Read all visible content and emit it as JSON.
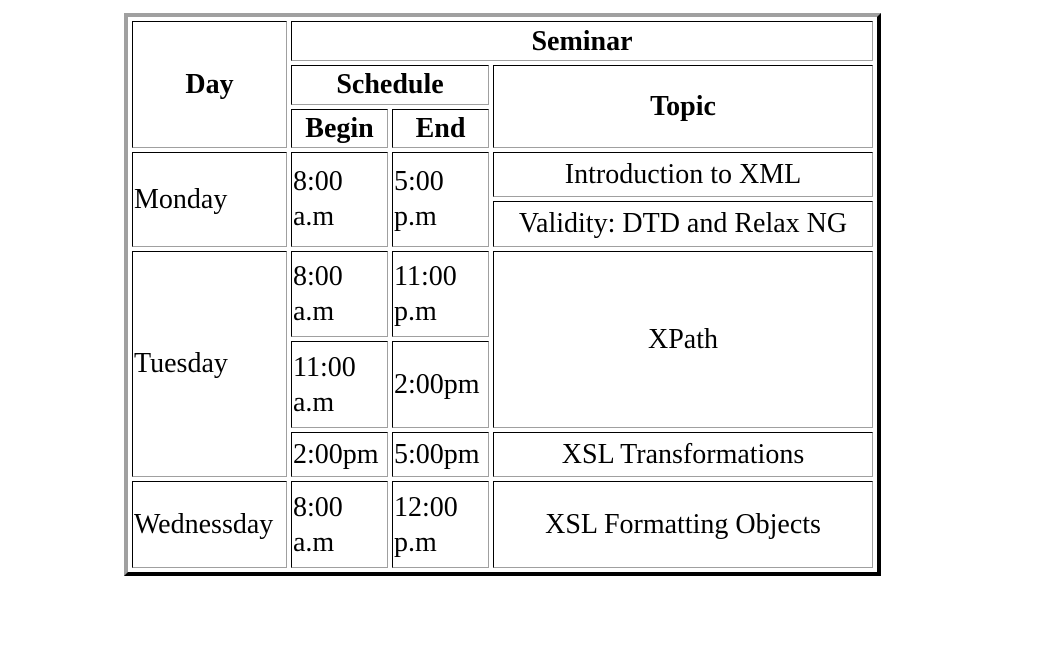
{
  "table": {
    "headers": {
      "day": "Day",
      "seminar": "Seminar",
      "schedule": "Schedule",
      "topic": "Topic",
      "begin": "Begin",
      "end": "End"
    },
    "rows": [
      {
        "day": "Monday",
        "begin": "8:00 a.m",
        "end": "5:00 p.m",
        "topics": [
          "Introduction to XML",
          "Validity: DTD and Relax NG"
        ]
      },
      {
        "day": "Tuesday",
        "slots": [
          {
            "begin": "8:00 a.m",
            "end": "11:00 p.m"
          },
          {
            "begin": "11:00 a.m",
            "end": "2:00pm"
          },
          {
            "begin": "2:00pm",
            "end": "5:00pm"
          }
        ],
        "topics": [
          "XPath",
          "XSL Transformations"
        ]
      },
      {
        "day": "Wednessday",
        "begin": "8:00 a.m",
        "end": "12:00 p.m",
        "topic": "XSL Formatting Objects"
      }
    ]
  }
}
